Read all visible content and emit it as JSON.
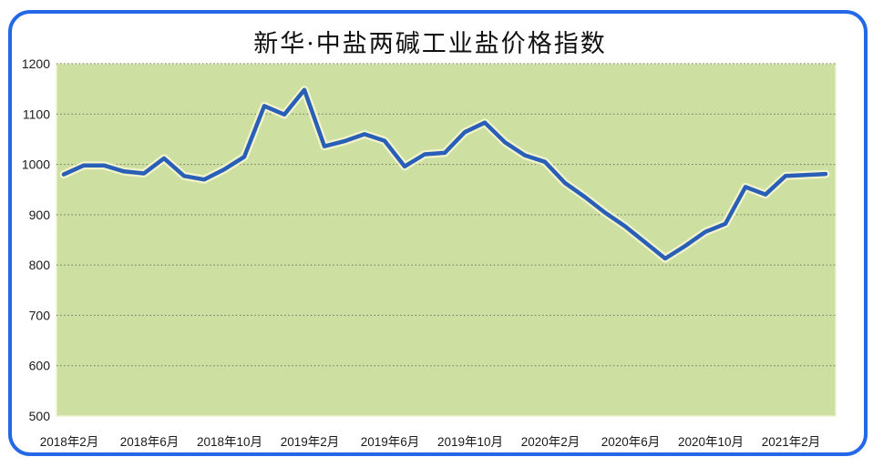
{
  "chart_data": {
    "type": "line",
    "title": "新华·中盐两碱工业盐价格指数",
    "x": [
      "2018年2月",
      "2018年3月",
      "2018年4月",
      "2018年5月",
      "2018年6月",
      "2018年7月",
      "2018年8月",
      "2018年9月",
      "2018年10月",
      "2018年11月",
      "2018年12月",
      "2019年1月",
      "2019年2月",
      "2019年3月",
      "2019年4月",
      "2019年5月",
      "2019年6月",
      "2019年7月",
      "2019年8月",
      "2019年9月",
      "2019年10月",
      "2019年11月",
      "2019年12月",
      "2020年1月",
      "2020年2月",
      "2020年3月",
      "2020年4月",
      "2020年5月",
      "2020年6月",
      "2020年7月",
      "2020年8月",
      "2020年9月",
      "2020年10月",
      "2020年11月",
      "2020年12月",
      "2021年1月",
      "2021年2月",
      "2021年3月",
      "2021年4月"
    ],
    "values": [
      980,
      998,
      998,
      986,
      982,
      1012,
      977,
      970,
      990,
      1015,
      1116,
      1099,
      1148,
      1036,
      1046,
      1060,
      1047,
      996,
      1020,
      1023,
      1064,
      1083,
      1044,
      1018,
      1005,
      963,
      935,
      904,
      877,
      845,
      813,
      838,
      866,
      882,
      955,
      940,
      977,
      979,
      981
    ],
    "x_tick_labels": [
      "2018年2月",
      "2018年6月",
      "2018年10月",
      "2019年2月",
      "2019年6月",
      "2019年10月",
      "2020年2月",
      "2020年6月",
      "2020年10月",
      "2021年2月"
    ],
    "x_tick_every": 4,
    "y_ticks": [
      500,
      600,
      700,
      800,
      900,
      1000,
      1100,
      1200
    ],
    "ylim": [
      500,
      1200
    ],
    "xlabel": "",
    "ylabel": "",
    "grid": "horizontal-dotted",
    "legend": "none",
    "colors": {
      "line": "#2a5fb8",
      "line_halo": "#f2f4cc",
      "plot_bg": "#cedfa2",
      "plot_edge": "#eef0cf",
      "frame_border": "#2468e8",
      "grid": "#70705e",
      "text": "#1a1a1a",
      "page_bg": "#ffffff"
    }
  }
}
